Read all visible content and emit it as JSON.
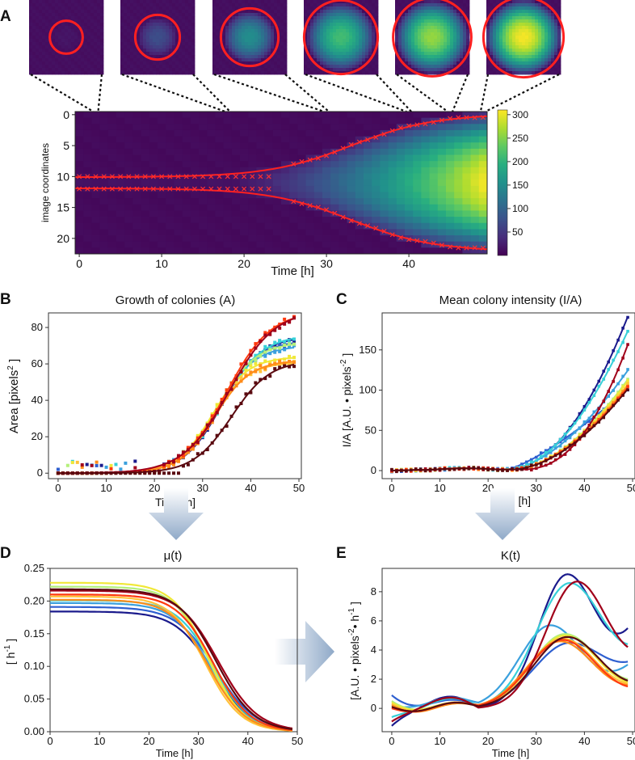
{
  "panel_labels": [
    "A",
    "B",
    "C",
    "D",
    "E"
  ],
  "colors": {
    "fit": "#ff2020",
    "arrow": "#9bb3cf",
    "viridis": [
      "#440154",
      "#472d7b",
      "#3b528b",
      "#2c728e",
      "#21918c",
      "#28ae80",
      "#5ec962",
      "#addc30",
      "#fde725"
    ],
    "palette": [
      "#1a1a8c",
      "#2e5fd0",
      "#3aa0dd",
      "#37d0d8",
      "#b4f07a",
      "#f0e838",
      "#ffc23a",
      "#ff8c1a",
      "#ff3a10",
      "#a0001a",
      "#5a0a10"
    ]
  },
  "chart_data": [
    {
      "id": "A-thumbnails",
      "type": "image",
      "times": [
        2,
        18,
        30,
        40,
        45,
        49
      ],
      "radii": [
        4.2,
        6.0,
        8.0,
        10.5,
        11.2,
        11.5
      ],
      "intensities": [
        0.02,
        0.2,
        0.45,
        0.65,
        0.8,
        0.95
      ]
    },
    {
      "id": "A-kymograph",
      "type": "heatmap",
      "xlabel": "Time [h]",
      "ylabel": "image coordinates",
      "xticks": [
        "0",
        "10",
        "20",
        "30",
        "40"
      ],
      "yticks": [
        "0",
        "5",
        "10",
        "15",
        "20"
      ],
      "xlim": [
        -0.5,
        49.5
      ],
      "ylim": [
        -0.5,
        22.5
      ],
      "colorbar": {
        "ticks": [
          "50",
          "100",
          "150",
          "200",
          "250",
          "300"
        ],
        "range": [
          0,
          310
        ]
      },
      "boundary": {
        "center": 11,
        "r0": 0.9,
        "rmax": 11.1,
        "t_mid": 33,
        "k": 0.2
      },
      "marker_times": [
        0,
        1,
        2,
        3,
        4,
        5,
        6,
        7,
        8,
        9,
        10,
        11,
        12,
        13,
        14,
        15,
        16,
        17,
        18,
        19,
        20,
        21,
        22,
        23,
        24,
        25,
        26,
        27,
        28,
        29,
        30,
        31,
        32,
        33,
        34,
        35,
        36,
        37,
        38,
        39,
        40,
        41,
        42,
        43,
        44,
        45,
        46,
        47,
        48,
        49
      ]
    },
    {
      "id": "B",
      "type": "scatter+line",
      "title": "Growth of colonies (A)",
      "xlabel": "Time [h]",
      "ylabel": "Area  [pixels",
      "ylabel_sup": "2",
      "ylabel_end": " ]",
      "xticks": [
        "0",
        "10",
        "20",
        "30",
        "40",
        "50"
      ],
      "yticks": [
        "0",
        "20",
        "40",
        "60",
        "80"
      ],
      "xlim": [
        -2,
        50.5
      ],
      "ylim": [
        -3,
        88
      ],
      "series": [
        {
          "color": "#1a1a8c",
          "Amax": 75,
          "tm": 34,
          "k": 0.25
        },
        {
          "color": "#2e5fd0",
          "Amax": 73,
          "tm": 33.5,
          "k": 0.25
        },
        {
          "color": "#3aa0dd",
          "Amax": 70,
          "tm": 33,
          "k": 0.26
        },
        {
          "color": "#37d0d8",
          "Amax": 76,
          "tm": 34,
          "k": 0.24
        },
        {
          "color": "#b4f07a",
          "Amax": 72,
          "tm": 33,
          "k": 0.25
        },
        {
          "color": "#f0e838",
          "Amax": 64,
          "tm": 32,
          "k": 0.27
        },
        {
          "color": "#ffc23a",
          "Amax": 61,
          "tm": 32,
          "k": 0.27
        },
        {
          "color": "#ff8c1a",
          "Amax": 62,
          "tm": 32.5,
          "k": 0.27
        },
        {
          "color": "#ff3a10",
          "Amax": 89,
          "tm": 35,
          "k": 0.22
        },
        {
          "color": "#a0001a",
          "Amax": 90,
          "tm": 35.5,
          "k": 0.21
        },
        {
          "color": "#5a0a10",
          "Amax": 62,
          "tm": 36,
          "k": 0.25
        }
      ]
    },
    {
      "id": "C",
      "type": "scatter+line",
      "title": "Mean colony intensity (I/A)",
      "xlabel": "Time [h]",
      "ylabel": "I/A [A.U. • pixels",
      "ylabel_sup": "-2",
      "ylabel_end": " ]",
      "xticks": [
        "0",
        "10",
        "20",
        "30",
        "40",
        "50"
      ],
      "yticks": [
        "0",
        "50",
        "100",
        "150"
      ],
      "xlim": [
        -2,
        50.5
      ],
      "ylim": [
        -10,
        196
      ],
      "series": [
        {
          "color": "#1a1a8c",
          "end": 190,
          "t0": 24,
          "p": 2.0
        },
        {
          "color": "#2e5fd0",
          "end": 100,
          "t0": 24,
          "p": 1.3
        },
        {
          "color": "#3aa0dd",
          "end": 123,
          "t0": 24,
          "p": 1.7
        },
        {
          "color": "#37d0d8",
          "end": 172,
          "t0": 24,
          "p": 1.9
        },
        {
          "color": "#b4f07a",
          "end": 112,
          "t0": 25,
          "p": 1.8
        },
        {
          "color": "#f0e838",
          "end": 110,
          "t0": 25,
          "p": 1.8
        },
        {
          "color": "#ffc23a",
          "end": 106,
          "t0": 25,
          "p": 1.8
        },
        {
          "color": "#ff8c1a",
          "end": 104,
          "t0": 25,
          "p": 1.8
        },
        {
          "color": "#ff3a10",
          "end": 102,
          "t0": 25,
          "p": 1.8
        },
        {
          "color": "#a0001a",
          "end": 155,
          "t0": 27,
          "p": 2.3
        },
        {
          "color": "#5a0a10",
          "end": 100,
          "t0": 25,
          "p": 1.8
        }
      ]
    },
    {
      "id": "D",
      "type": "line",
      "title": "μ(t)",
      "xlabel": "Time [h]",
      "ylabel": "[ h",
      "ylabel_sup": "-1",
      "ylabel_end": " ]",
      "xticks": [
        "0",
        "10",
        "20",
        "30",
        "40",
        "50"
      ],
      "yticks": [
        "0.00",
        "0.05",
        "0.10",
        "0.15",
        "0.20",
        "0.25"
      ],
      "xlim": [
        0,
        50
      ],
      "ylim": [
        0,
        0.25
      ],
      "series": [
        {
          "color": "#1a1a8c",
          "m0": 0.184,
          "tm": 33,
          "k": 0.26
        },
        {
          "color": "#2e5fd0",
          "m0": 0.191,
          "tm": 33.5,
          "k": 0.25
        },
        {
          "color": "#3aa0dd",
          "m0": 0.197,
          "tm": 32.5,
          "k": 0.27
        },
        {
          "color": "#37d0d8",
          "m0": 0.201,
          "tm": 33,
          "k": 0.27
        },
        {
          "color": "#b4f07a",
          "m0": 0.222,
          "tm": 32,
          "k": 0.29
        },
        {
          "color": "#f0e838",
          "m0": 0.228,
          "tm": 32,
          "k": 0.28
        },
        {
          "color": "#ffc23a",
          "m0": 0.207,
          "tm": 31.5,
          "k": 0.28
        },
        {
          "color": "#ff8c1a",
          "m0": 0.202,
          "tm": 32,
          "k": 0.27
        },
        {
          "color": "#ff3a10",
          "m0": 0.21,
          "tm": 33,
          "k": 0.27
        },
        {
          "color": "#a0001a",
          "m0": 0.216,
          "tm": 34,
          "k": 0.25
        },
        {
          "color": "#5a0a10",
          "m0": 0.218,
          "tm": 33.5,
          "k": 0.26
        }
      ]
    },
    {
      "id": "E",
      "type": "line",
      "title": "K(t)",
      "xlabel": "Time [h]",
      "ylabel": "[A.U. • pixels",
      "ylabel_sup": "-2",
      "ylabel_mid": "• h",
      "ylabel_sup2": "-1",
      "ylabel_end": " ]",
      "xticks": [
        "0",
        "10",
        "20",
        "30",
        "40",
        "50"
      ],
      "yticks": [
        "0",
        "2",
        "4",
        "6",
        "8"
      ],
      "xlim": [
        -2,
        50.5
      ],
      "ylim": [
        -1.6,
        9.6
      ],
      "series": [
        {
          "color": "#1a1a8c",
          "peak": 9.2,
          "tp": 36.5,
          "w": 6.0,
          "end": 5.5,
          "b0": -1.2,
          "bump": 0.7
        },
        {
          "color": "#2e5fd0",
          "peak": 4.5,
          "tp": 37,
          "w": 7.5,
          "end": 3.2,
          "b0": 0.9,
          "bump": 0.3
        },
        {
          "color": "#3aa0dd",
          "peak": 5.7,
          "tp": 33,
          "w": 6.5,
          "end": 3.0,
          "b0": 0.2,
          "bump": 0.5
        },
        {
          "color": "#37d0d8",
          "peak": 8.6,
          "tp": 37,
          "w": 7.0,
          "end": 4.4,
          "b0": -0.6,
          "bump": 0.5
        },
        {
          "color": "#b4f07a",
          "peak": 5.1,
          "tp": 36,
          "w": 7.0,
          "end": 2.0,
          "b0": 0.5,
          "bump": 0.1
        },
        {
          "color": "#f0e838",
          "peak": 5.0,
          "tp": 36,
          "w": 7.0,
          "end": 1.8,
          "b0": 0.4,
          "bump": 0.1
        },
        {
          "color": "#ffc23a",
          "peak": 4.8,
          "tp": 35.5,
          "w": 7.0,
          "end": 1.7,
          "b0": 0.3,
          "bump": 0.0
        },
        {
          "color": "#ff8c1a",
          "peak": 4.6,
          "tp": 35,
          "w": 7.0,
          "end": 1.6,
          "b0": 0.2,
          "bump": 0.0
        },
        {
          "color": "#ff3a10",
          "peak": 4.7,
          "tp": 35.5,
          "w": 7.0,
          "end": 1.5,
          "b0": 0.0,
          "bump": 0.1
        },
        {
          "color": "#a0001a",
          "peak": 8.7,
          "tp": 38.5,
          "w": 6.5,
          "end": 4.2,
          "b0": -0.9,
          "bump": 0.6
        },
        {
          "color": "#5a0a10",
          "peak": 4.9,
          "tp": 36.5,
          "w": 7.0,
          "end": 1.9,
          "b0": 0.1,
          "bump": 0.1
        }
      ]
    }
  ]
}
